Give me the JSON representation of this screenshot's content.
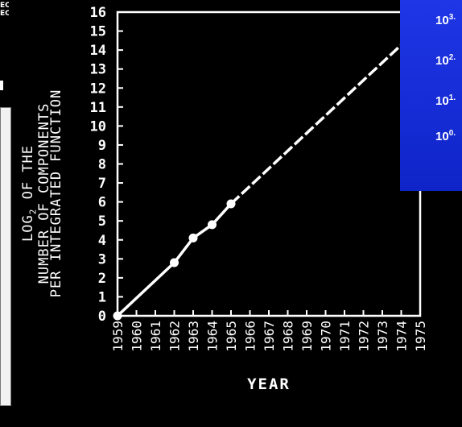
{
  "chart_data": {
    "type": "line",
    "ylabel_lines": [
      "LOG2 OF THE",
      "NUMBER OF COMPONENTS",
      "PER INTEGRATED FUNCTION"
    ],
    "xlabel": "YEAR",
    "x_ticks": [
      "1959",
      "1960",
      "1961",
      "1962",
      "1963",
      "1964",
      "1965",
      "1966",
      "1967",
      "1968",
      "1969",
      "1970",
      "1971",
      "1972",
      "1973",
      "1974",
      "1975"
    ],
    "y_ticks": [
      "0",
      "1",
      "2",
      "3",
      "4",
      "5",
      "6",
      "7",
      "8",
      "9",
      "10",
      "11",
      "12",
      "13",
      "14",
      "15",
      "16"
    ],
    "xlim": [
      1959,
      1975
    ],
    "ylim": [
      0,
      16
    ],
    "series": [
      {
        "style": "solid",
        "x": [
          1959,
          1962,
          1963,
          1964,
          1965
        ],
        "y": [
          0,
          2.8,
          4.1,
          4.8,
          5.9
        ]
      },
      {
        "style": "dashed",
        "x": [
          1965,
          1975
        ],
        "y": [
          5.9,
          15.2
        ]
      }
    ],
    "grid": false
  },
  "overlays": {
    "left_fragment_lines": [
      "EC",
      "EC"
    ],
    "blue_labels": [
      {
        "base": "10",
        "exp": "3."
      },
      {
        "base": "10",
        "exp": "2."
      },
      {
        "base": "10",
        "exp": "1."
      },
      {
        "base": "10",
        "exp": "0."
      }
    ]
  },
  "colors": {
    "background": "#000000",
    "foreground": "#ffffff",
    "panel_blue": "#1a30e0"
  }
}
